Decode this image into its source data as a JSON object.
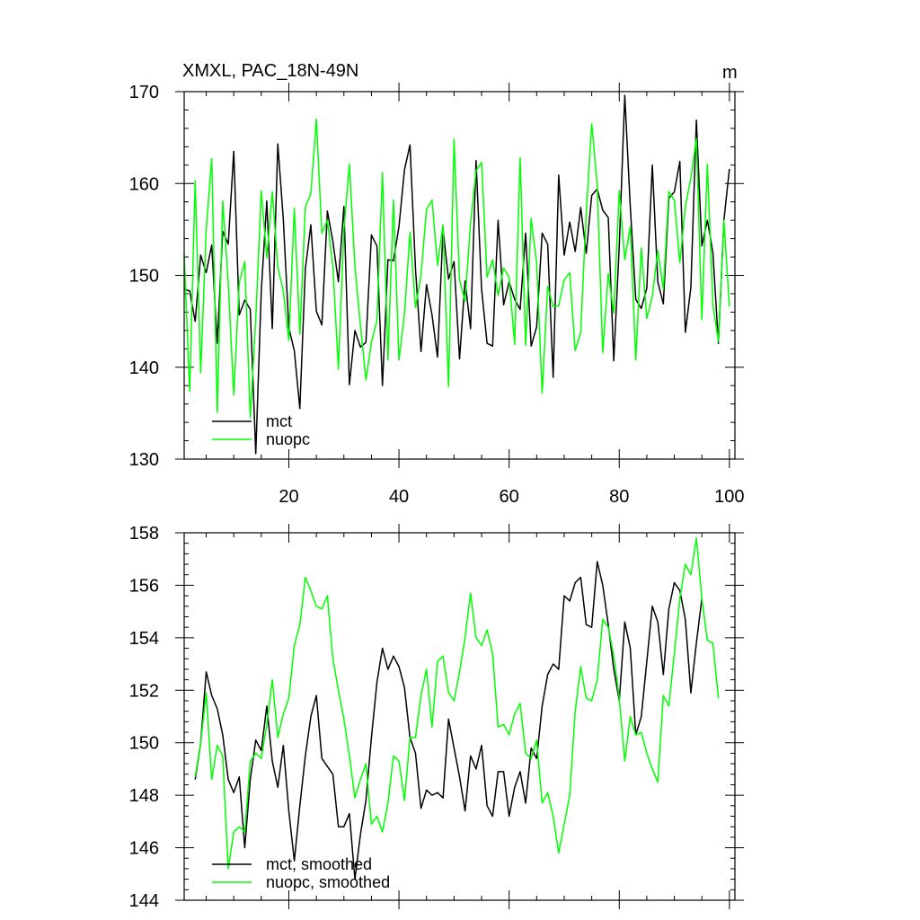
{
  "chart_data": [
    {
      "type": "line",
      "title": "XMXL, PAC_18N-49N",
      "units_label": "m",
      "xlim": [
        1,
        101
      ],
      "ylim": [
        130,
        170
      ],
      "x_ticks": [
        20,
        40,
        60,
        80,
        100
      ],
      "y_ticks": [
        130,
        140,
        150,
        160,
        170
      ],
      "legend_position": "bottom-left",
      "series": [
        {
          "name": "mct",
          "color": "#000000",
          "x_start": 1,
          "values": [
            148.5,
            148.3,
            145,
            152.2,
            150.3,
            153.3,
            142.6,
            154.8,
            153.4,
            163.5,
            145.7,
            147.3,
            146.3,
            130.6,
            148.3,
            158.1,
            144.2,
            164.3,
            156.1,
            144.3,
            141.8,
            135.5,
            150.7,
            155.5,
            146.1,
            144.6,
            157,
            153.7,
            149.3,
            157.5,
            138.1,
            144,
            142.2,
            142.7,
            154.4,
            153.2,
            138,
            151.7,
            151.6,
            155.3,
            161.5,
            164.2,
            150.7,
            141.7,
            149,
            145.7,
            141.1,
            155,
            149.6,
            151.5,
            140.9,
            149.4,
            144.2,
            162.5,
            148.5,
            142.6,
            142.3,
            156,
            146.8,
            149.3,
            147.4,
            146.3,
            154.6,
            142.3,
            144.4,
            154.6,
            153.4,
            138.9,
            160.9,
            152.2,
            155.8,
            152.6,
            157.4,
            152.4,
            158.7,
            159.4,
            157.1,
            156.3,
            140.7,
            153.2,
            169.6,
            157.5,
            147.4,
            146.4,
            148.6,
            162,
            149.3,
            146.9,
            158.4,
            159.1,
            162.4,
            143.8,
            148.7,
            166.9,
            153.2,
            156,
            152.5,
            142.6,
            156,
            161.6
          ]
        },
        {
          "name": "nuopc",
          "color": "#00FF00",
          "x_start": 1,
          "values": [
            152.3,
            137.4,
            160.3,
            139.4,
            155,
            162.7,
            135.1,
            158.1,
            149.2,
            137,
            149.2,
            151.5,
            134.5,
            145.3,
            159.2,
            151.9,
            159.1,
            150.9,
            148.3,
            142.9,
            157.3,
            143.6,
            157.4,
            158.9,
            167,
            154.6,
            156,
            151,
            139.8,
            155,
            162.1,
            151,
            144.6,
            138.6,
            142.7,
            145.1,
            161.2,
            140.8,
            158.2,
            140.8,
            145.8,
            154.7,
            146.5,
            150,
            157.2,
            158.2,
            151.1,
            155.5,
            137.9,
            164.8,
            149.5,
            147.2,
            155.7,
            161.4,
            162.3,
            149.8,
            151.7,
            147.8,
            150.8,
            149.8,
            142.5,
            162.8,
            142.4,
            156.2,
            151.3,
            137.2,
            148.8,
            146.6,
            146.7,
            149.5,
            150.3,
            141.8,
            143.8,
            156.8,
            166.5,
            159.8,
            141.6,
            150.2,
            145.9,
            159.2,
            151.7,
            155.3,
            140.8,
            153,
            145.3,
            147.7,
            152.7,
            148.5,
            159.1,
            158.2,
            151.4,
            157.5,
            160.6,
            164.9,
            145.2,
            162.1,
            146.8,
            142.8,
            156,
            146.6
          ]
        }
      ]
    },
    {
      "type": "line",
      "title": "",
      "xlim": [
        1,
        101
      ],
      "ylim": [
        144,
        158
      ],
      "y_ticks": [
        144,
        146,
        148,
        150,
        152,
        154,
        156,
        158
      ],
      "legend_position": "bottom-left",
      "series": [
        {
          "name": "mct, smoothed",
          "color": "#000000",
          "x_start": 3,
          "values": [
            148.6,
            150,
            152.7,
            151.8,
            151.3,
            150.3,
            148.6,
            148.1,
            148.7,
            146,
            148.6,
            150.1,
            149.7,
            151.4,
            149.3,
            148.3,
            149.9,
            147.4,
            145.5,
            147.6,
            149.5,
            151,
            151.8,
            149.4,
            149.1,
            148.8,
            146.8,
            146.8,
            147.3,
            144.8,
            146.5,
            147.8,
            150.2,
            152.3,
            153.6,
            152.8,
            153.3,
            152.9,
            152.1,
            150.2,
            149.6,
            147.5,
            148.2,
            148,
            148.1,
            147.9,
            150.9,
            149.8,
            148.7,
            147.4,
            149.5,
            149,
            149.9,
            147.6,
            147.2,
            148.9,
            148.9,
            147.2,
            148.3,
            148.9,
            147.7,
            149.8,
            149.4,
            151.4,
            152.6,
            153,
            152.8,
            155.6,
            155.4,
            156.1,
            156.3,
            154.5,
            154.4,
            156.9,
            156,
            154.5,
            152.8,
            151.6,
            154.6,
            153.6,
            150.3,
            151,
            153.1,
            155.2,
            154.6,
            152.6,
            155.1,
            156.1,
            155.8,
            154.7,
            151.9,
            153.8,
            155.5
          ]
        },
        {
          "name": "nuopc, smoothed",
          "color": "#00FF00",
          "x_start": 3,
          "values": [
            148.7,
            150,
            151.9,
            148.6,
            149.9,
            149.5,
            145.2,
            146.6,
            146.8,
            146.6,
            149.3,
            149.6,
            149.4,
            150.7,
            152.4,
            150.2,
            151.1,
            151.7,
            153.7,
            154.5,
            156.3,
            155.8,
            155.2,
            155.1,
            155.6,
            153.2,
            152,
            150.9,
            149.5,
            147.9,
            148.6,
            149.2,
            146.9,
            147.2,
            146.6,
            147.7,
            149.5,
            149.3,
            147.8,
            150.2,
            150.2,
            151.8,
            152.8,
            150.6,
            153.1,
            153.3,
            151.9,
            151.6,
            152.7,
            154,
            155.7,
            154,
            153.7,
            154.3,
            153.4,
            150.6,
            150.7,
            150.3,
            151.1,
            151.5,
            149.6,
            149.4,
            150.1,
            147.7,
            148.1,
            147.2,
            145.8,
            146.9,
            148,
            151.2,
            152.9,
            151.7,
            151.6,
            152.4,
            154.7,
            154.4,
            153.3,
            151.7,
            149.3,
            151,
            150.3,
            150.4,
            149.6,
            149,
            148.5,
            151.8,
            151.4,
            153.4,
            155.5,
            156.8,
            156.4,
            157.8,
            155.5,
            153.9,
            153.8,
            151.7
          ]
        }
      ]
    }
  ]
}
